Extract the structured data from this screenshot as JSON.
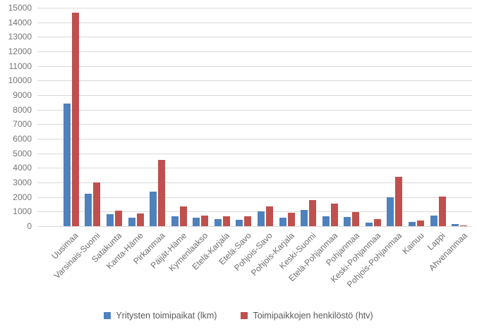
{
  "chart_data": {
    "type": "bar",
    "title": "",
    "xlabel": "",
    "ylabel": "",
    "categories": [
      "Uusimaa",
      "Varsinais-Suomi",
      "Satakunta",
      "Kanta-Häme",
      "Pirkanmaa",
      "Päijät-Häme",
      "Kymenlaakso",
      "Etelä-Karjala",
      "Etelä-Savo",
      "Pohjois-Savo",
      "Pohjois-Karjala",
      "Keski-Suomi",
      "Etelä-Pohjanmaa",
      "Pohjanmaa",
      "Keski-Pohjanmaa",
      "Pohjois-Pohjanmaa",
      "Kainuu",
      "Lappi",
      "Ahvenanmaa"
    ],
    "series": [
      {
        "name": "Yritysten toimipaikat (lkm)",
        "color": "#4F81BD",
        "values": [
          8400,
          2250,
          800,
          600,
          2350,
          700,
          600,
          480,
          440,
          1000,
          600,
          1100,
          690,
          640,
          260,
          2000,
          280,
          710,
          130
        ]
      },
      {
        "name": "Toimipaikkojen henkilöstö (htv)",
        "color": "#C0504D",
        "values": [
          14650,
          3000,
          1050,
          880,
          4550,
          1370,
          720,
          660,
          690,
          1360,
          900,
          1780,
          1540,
          990,
          460,
          3390,
          370,
          2050,
          20
        ]
      }
    ],
    "ylim": [
      0,
      15000
    ],
    "y_ticks": [
      0,
      1000,
      2000,
      3000,
      4000,
      5000,
      6000,
      7000,
      8000,
      9000,
      10000,
      11000,
      12000,
      13000,
      14000,
      15000
    ],
    "grid": true,
    "legend_position": "bottom"
  },
  "colors": {
    "gridline": "#D9D9D9",
    "axis_text": "#757575",
    "legend_text": "#595959",
    "series1": "#4F81BD",
    "series2": "#C0504D"
  }
}
